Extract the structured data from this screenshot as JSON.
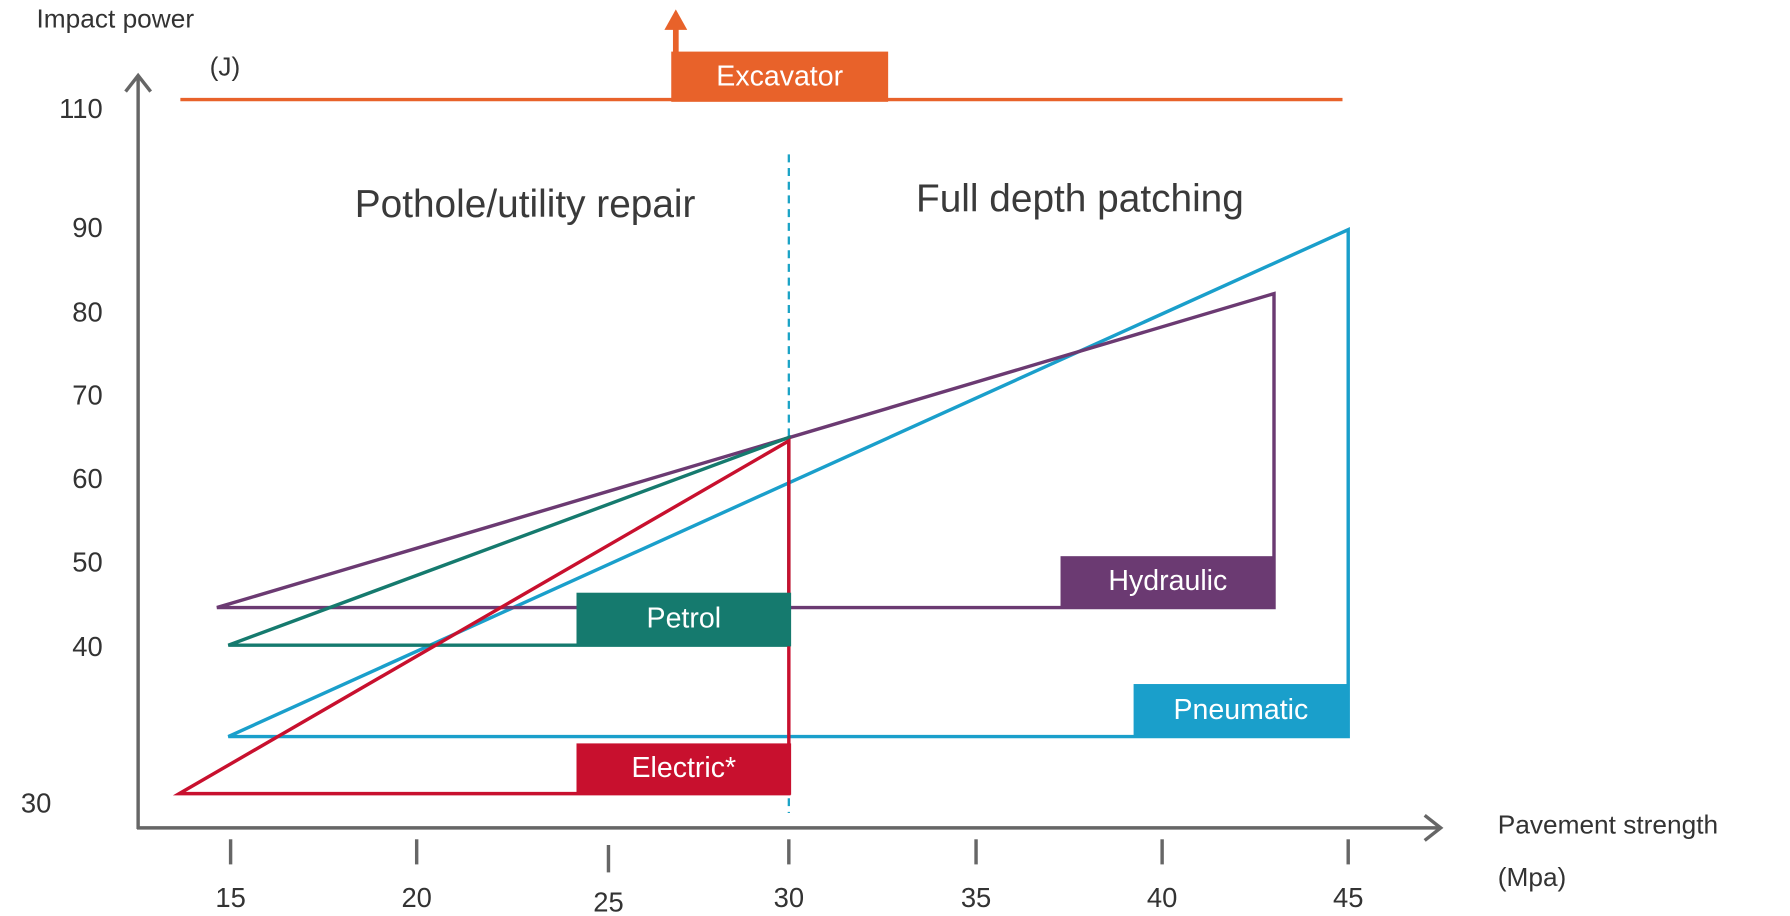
{
  "axes": {
    "y_label": "Impact power",
    "y_unit": "(J)",
    "x_label": "Pavement strength",
    "x_unit": "(Mpa)",
    "y_ticks": [
      "110",
      "90",
      "80",
      "70",
      "60",
      "50",
      "40",
      "30"
    ],
    "x_ticks": [
      "15",
      "20",
      "25",
      "30",
      "35",
      "40",
      "45"
    ]
  },
  "regions": [
    "Pothole/utility repair",
    "Full depth patching"
  ],
  "tools": {
    "excavator": "Excavator",
    "hydraulic": "Hydraulic",
    "petrol": "Petrol",
    "pneumatic": "Pneumatic",
    "electric": "Electric*"
  }
}
